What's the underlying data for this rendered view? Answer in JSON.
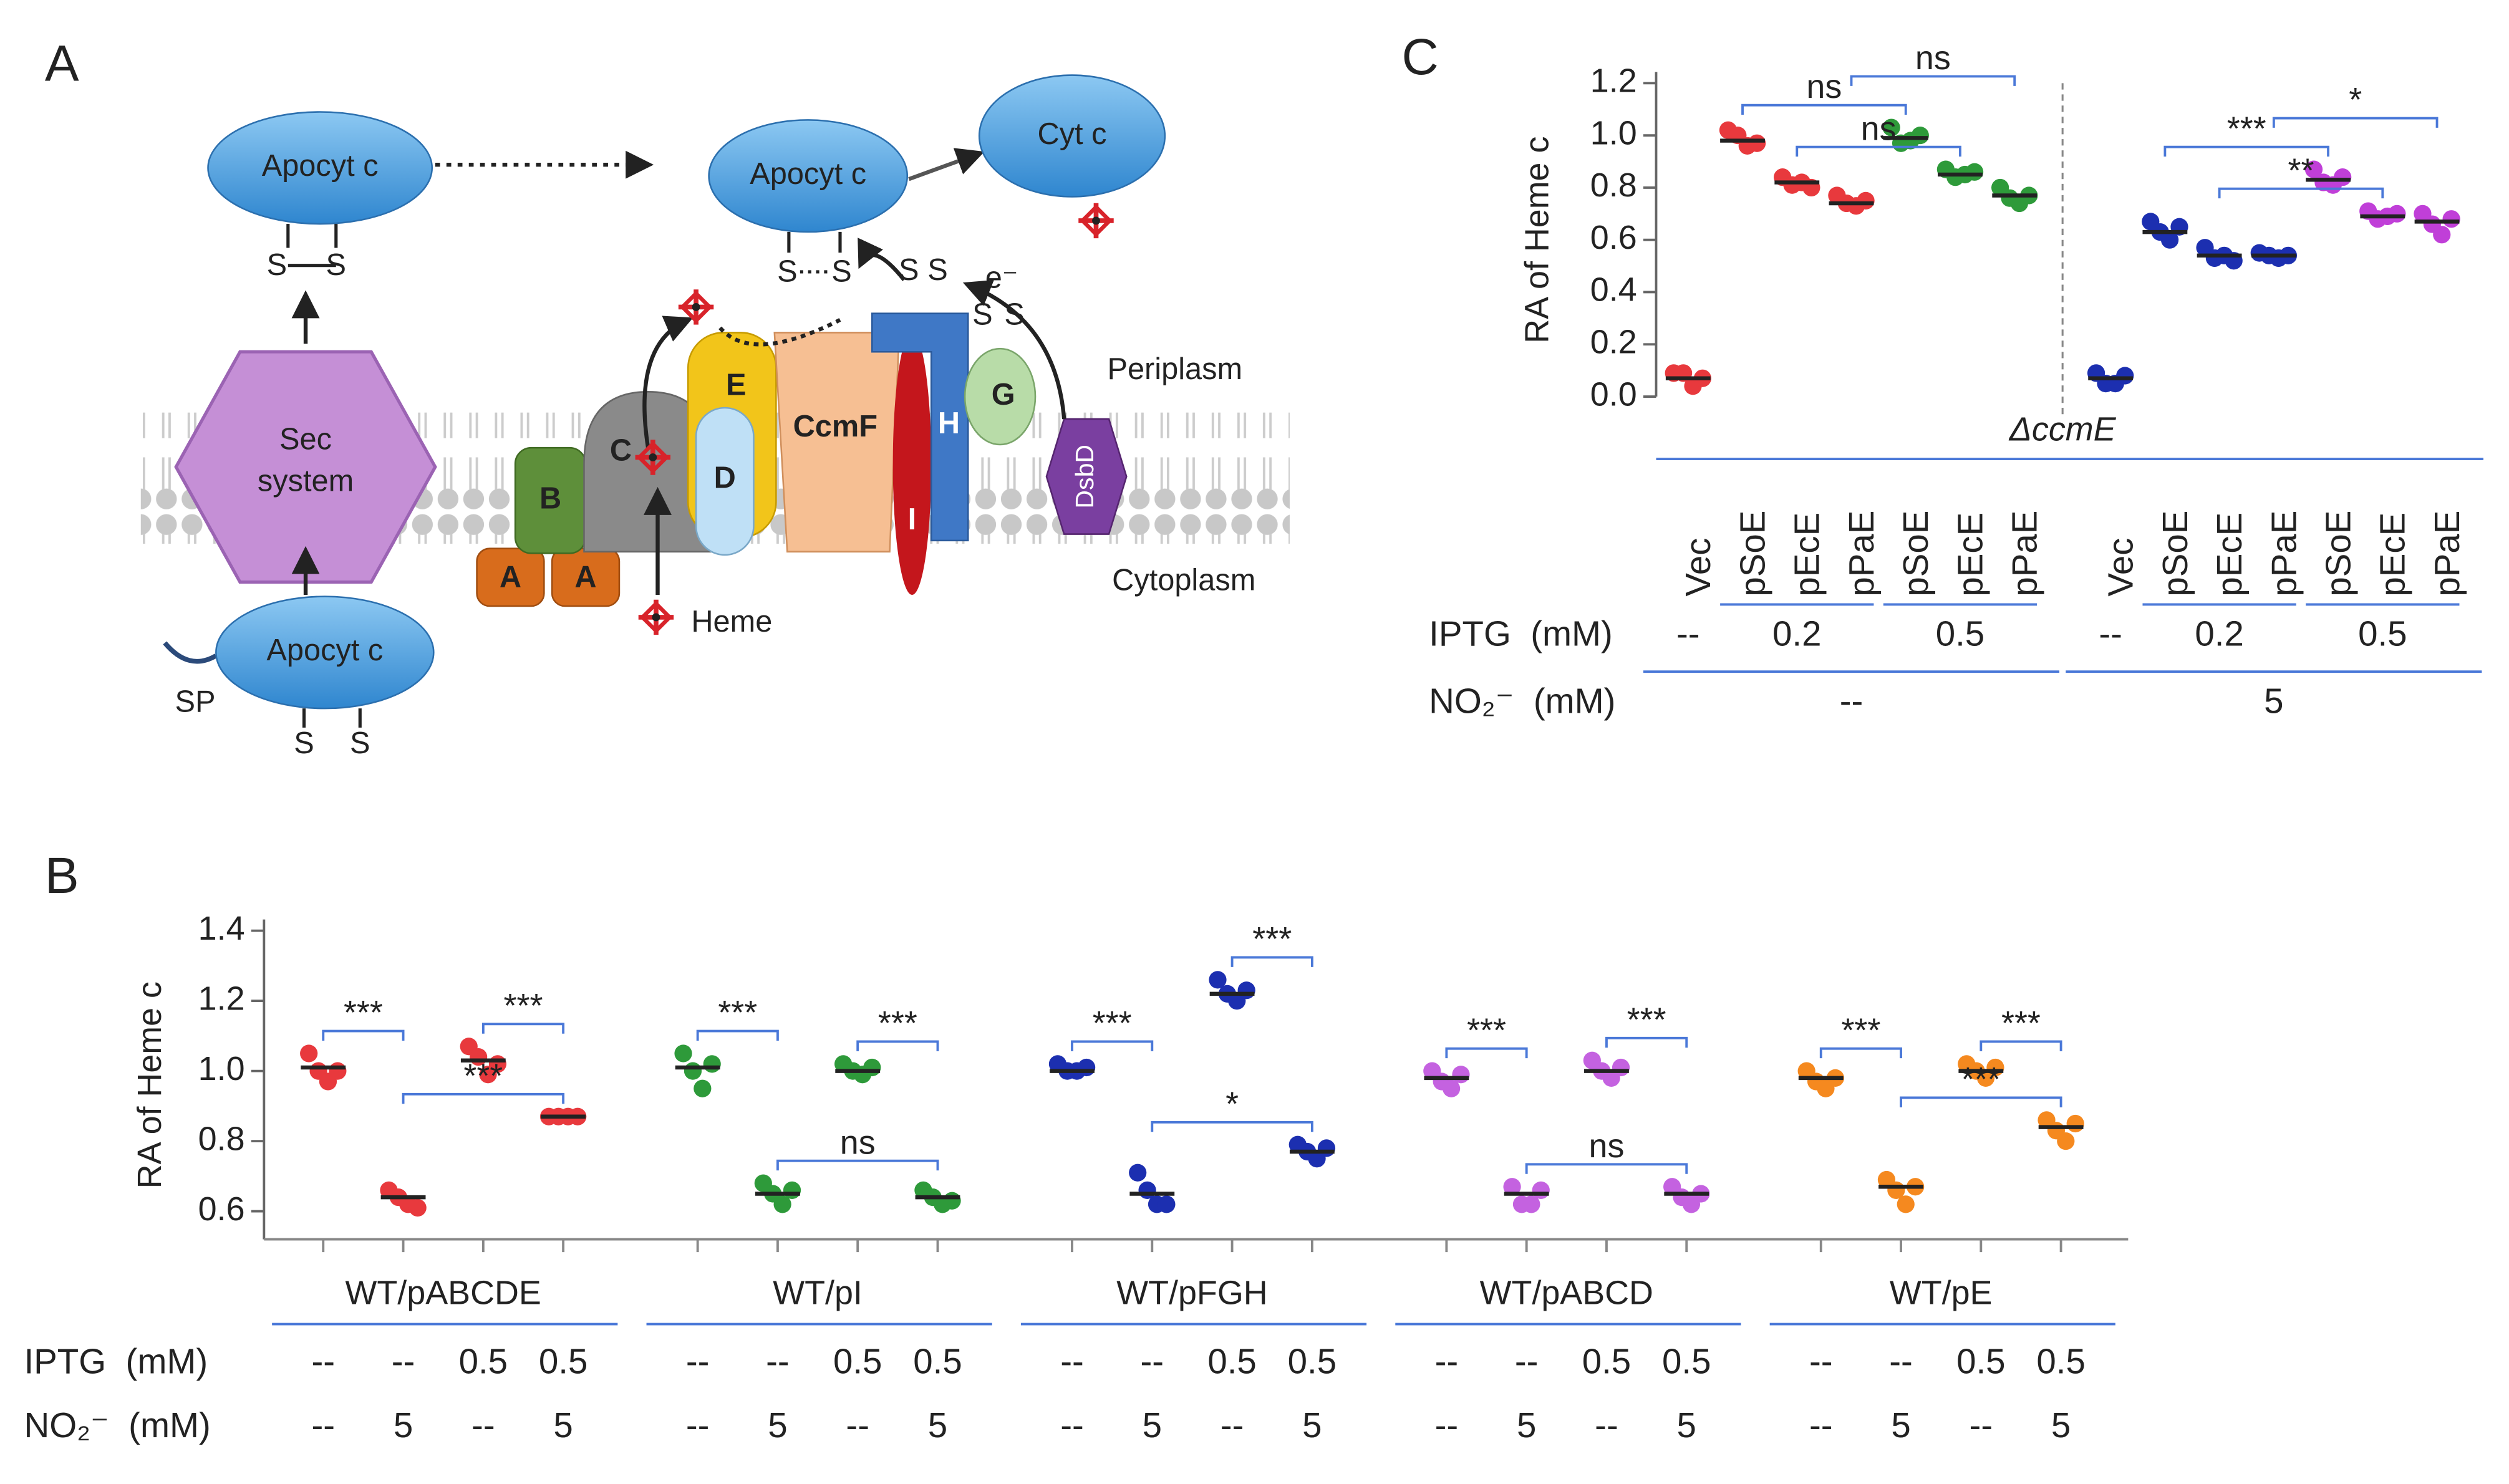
{
  "panel_labels": [
    "A",
    "B",
    "C"
  ],
  "diagram": {
    "labels": [
      "Apocyt c",
      "S",
      "S",
      "Sec",
      "system",
      "Apocyt c",
      "SP",
      "S",
      "S",
      "Apocyt c",
      "Cyt c",
      "S",
      "S",
      "S",
      "S",
      "e⁻",
      "S",
      "S",
      "B",
      "A",
      "A",
      "C",
      "D",
      "E",
      "CcmF",
      "H",
      "I",
      "G",
      "DsbD",
      "Heme",
      "Periplasm",
      "Cytoplasm"
    ]
  },
  "chart_data": [
    {
      "type": "dot",
      "y_label": "RA of Heme c",
      "ylim": [
        0.52,
        1.4
      ],
      "yticks": [
        0.6,
        0.8,
        {
          "value": 1,
          "label": "1.0"
        },
        1.2,
        1.4
      ],
      "groups": [
        {
          "name": "WT/pABCDE",
          "span": 4
        },
        {
          "name": "WT/pI",
          "span": 4
        },
        {
          "name": "WT/pFGH",
          "span": 4
        },
        {
          "name": "WT/pABCD",
          "span": 4
        },
        {
          "name": "WT/pE",
          "span": 4
        }
      ],
      "colors": [
        "#e8393d",
        "#e8393d",
        "#e8393d",
        "#e8393d",
        "#2e9a3a",
        "#2e9a3a",
        "#2e9a3a",
        "#2e9a3a",
        "#1c2fb0",
        "#1c2fb0",
        "#1c2fb0",
        "#1c2fb0",
        "#c462e0",
        "#c462e0",
        "#c462e0",
        "#c462e0",
        "#f5891f",
        "#f5891f",
        "#f5891f",
        "#f5891f"
      ],
      "points": [
        [
          1.05,
          1.0,
          0.97,
          1.0
        ],
        [
          0.66,
          0.64,
          0.62,
          0.61
        ],
        [
          1.07,
          1.04,
          0.99,
          1.02
        ],
        [
          0.87,
          0.87,
          0.87,
          0.87
        ],
        [
          1.05,
          1.0,
          0.95,
          1.02
        ],
        [
          0.68,
          0.65,
          0.62,
          0.66
        ],
        [
          1.02,
          1.0,
          0.99,
          1.01
        ],
        [
          0.66,
          0.64,
          0.62,
          0.63
        ],
        [
          1.02,
          1.0,
          1.0,
          1.01
        ],
        [
          0.71,
          0.66,
          0.62,
          0.62
        ],
        [
          1.26,
          1.22,
          1.2,
          1.23
        ],
        [
          0.79,
          0.77,
          0.75,
          0.78
        ],
        [
          1.0,
          0.97,
          0.95,
          0.99
        ],
        [
          0.67,
          0.62,
          0.62,
          0.66
        ],
        [
          1.03,
          1.0,
          0.98,
          1.01
        ],
        [
          0.67,
          0.64,
          0.62,
          0.65
        ],
        [
          1.0,
          0.97,
          0.95,
          0.98
        ],
        [
          0.69,
          0.66,
          0.62,
          0.67
        ],
        [
          1.02,
          1.0,
          0.98,
          1.01
        ],
        [
          0.86,
          0.83,
          0.8,
          0.85
        ]
      ],
      "means": [
        1.01,
        0.64,
        1.03,
        0.87,
        1.01,
        0.65,
        1.0,
        0.64,
        1.0,
        0.65,
        1.22,
        0.77,
        0.98,
        0.65,
        1.0,
        0.65,
        0.98,
        0.67,
        1.0,
        0.84
      ],
      "comparisons": [
        {
          "from": 0,
          "to": 1,
          "label": "***"
        },
        {
          "from": 2,
          "to": 3,
          "label": "***"
        },
        {
          "from": 1,
          "to": 3,
          "label": "***"
        },
        {
          "from": 4,
          "to": 5,
          "label": "***"
        },
        {
          "from": 6,
          "to": 7,
          "label": "***"
        },
        {
          "from": 5,
          "to": 7,
          "label": "ns"
        },
        {
          "from": 8,
          "to": 9,
          "label": "***"
        },
        {
          "from": 10,
          "to": 11,
          "label": "***"
        },
        {
          "from": 9,
          "to": 11,
          "label": "*"
        },
        {
          "from": 12,
          "to": 13,
          "label": "***"
        },
        {
          "from": 14,
          "to": 15,
          "label": "***"
        },
        {
          "from": 13,
          "to": 15,
          "label": "ns"
        },
        {
          "from": 16,
          "to": 17,
          "label": "***"
        },
        {
          "from": 18,
          "to": 19,
          "label": "***"
        },
        {
          "from": 17,
          "to": 19,
          "label": "***"
        }
      ],
      "rows": [
        {
          "name": "IPTG  (mM)",
          "labels": [
            "--",
            "--",
            "0.5",
            "0.5",
            "--",
            "--",
            "0.5",
            "0.5",
            "--",
            "--",
            "0.5",
            "0.5",
            "--",
            "--",
            "0.5",
            "0.5",
            "--",
            "--",
            "0.5",
            "0.5"
          ]
        },
        {
          "name": "NO₂⁻  (mM)",
          "labels": [
            "--",
            "5",
            "--",
            "5",
            "--",
            "5",
            "--",
            "5",
            "--",
            "5",
            "--",
            "5",
            "--",
            "5",
            "--",
            "5",
            "--",
            "5",
            "--",
            "5"
          ]
        }
      ]
    },
    {
      "type": "dot",
      "y_label": "RA of Heme c",
      "ylim": [
        0,
        1.2
      ],
      "yticks": [
        {
          "value": 0,
          "label": "0.0"
        },
        0.2,
        0.4,
        0.6,
        0.8,
        {
          "value": 1,
          "label": "1.0"
        },
        1.2
      ],
      "strain": "ΔccmE",
      "categories": [
        "Vec",
        "pSoE",
        "pEcE",
        "pPaE",
        "pSoE",
        "pEcE",
        "pPaE",
        "Vec",
        "pSoE",
        "pEcE",
        "pPaE",
        "pSoE",
        "pEcE",
        "pPaE"
      ],
      "colors": [
        "#e8393d",
        "#e8393d",
        "#e8393d",
        "#e8393d",
        "#2e9a3a",
        "#2e9a3a",
        "#2e9a3a",
        "#1c2fb0",
        "#1c2fb0",
        "#1c2fb0",
        "#1c2fb0",
        "#c03fd8",
        "#c03fd8",
        "#c03fd8"
      ],
      "points": [
        [
          0.09,
          0.09,
          0.04,
          0.07
        ],
        [
          1.02,
          1.0,
          0.96,
          0.97
        ],
        [
          0.84,
          0.81,
          0.82,
          0.8
        ],
        [
          0.77,
          0.74,
          0.73,
          0.75
        ],
        [
          1.03,
          0.97,
          0.98,
          1.0
        ],
        [
          0.87,
          0.84,
          0.85,
          0.86
        ],
        [
          0.8,
          0.76,
          0.74,
          0.77
        ],
        [
          0.09,
          0.05,
          0.05,
          0.08
        ],
        [
          0.67,
          0.63,
          0.6,
          0.65
        ],
        [
          0.57,
          0.53,
          0.54,
          0.52
        ],
        [
          0.55,
          0.54,
          0.53,
          0.54
        ],
        [
          0.87,
          0.82,
          0.81,
          0.84
        ],
        [
          0.71,
          0.68,
          0.69,
          0.7
        ],
        [
          0.7,
          0.66,
          0.62,
          0.68
        ]
      ],
      "means": [
        0.07,
        0.98,
        0.82,
        0.74,
        0.99,
        0.85,
        0.77,
        0.07,
        0.63,
        0.54,
        0.54,
        0.83,
        0.69,
        0.67
      ],
      "comparisons": [
        {
          "from": 1,
          "to": 4,
          "label": "ns"
        },
        {
          "from": 2,
          "to": 5,
          "label": "ns"
        },
        {
          "from": 3,
          "to": 6,
          "label": "ns"
        },
        {
          "from": 8,
          "to": 11,
          "label": "***"
        },
        {
          "from": 9,
          "to": 12,
          "label": "**"
        },
        {
          "from": 10,
          "to": 13,
          "label": "*"
        }
      ],
      "rows": [
        {
          "name": "IPTG  (mM)",
          "labels": [
            "--",
            "0.2",
            "0.5",
            "--",
            "0.2",
            "0.5"
          ],
          "spans": [
            1,
            3,
            3,
            1,
            3,
            3
          ]
        },
        {
          "name": "NO₂⁻  (mM)",
          "labels": [
            "--",
            "5"
          ],
          "spans": [
            7,
            7
          ]
        }
      ]
    }
  ]
}
